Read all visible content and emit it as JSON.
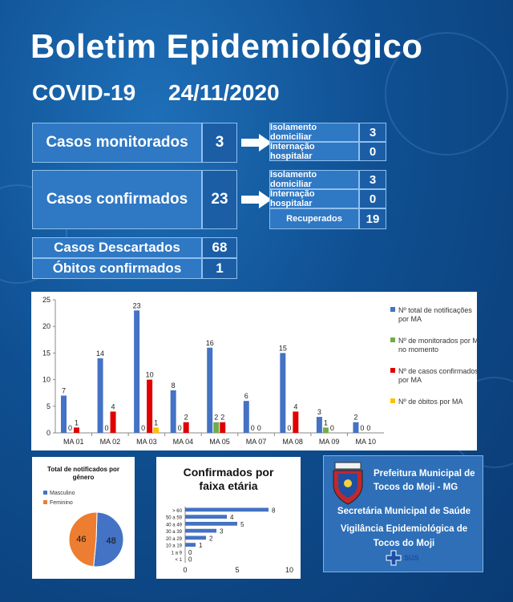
{
  "header": {
    "title": "Boletim Epidemiológico",
    "subtitle_left": "COVID-19",
    "date": "24/11/2020"
  },
  "monitorados": {
    "label": "Casos monitorados",
    "value": "3",
    "breakdown": [
      {
        "label": "Isolamento domiciliar",
        "value": "3"
      },
      {
        "label": "Internação hospitalar",
        "value": "0"
      }
    ]
  },
  "confirmados": {
    "label": "Casos confirmados",
    "value": "23",
    "breakdown": [
      {
        "label": "Isolamento domiciliar",
        "value": "3"
      },
      {
        "label": "Internação hospitalar",
        "value": "0"
      },
      {
        "label": "Recuperados",
        "value": "19"
      }
    ]
  },
  "descartados": {
    "label": "Casos Descartados",
    "value": "68"
  },
  "obitos": {
    "label": "Óbitos confirmados",
    "value": "1"
  },
  "colors": {
    "total": "#4472c4",
    "monitor": "#70ad47",
    "confirm": "#e00000",
    "obito": "#ffc000",
    "fem": "#ed7d31"
  },
  "chart_data": [
    {
      "type": "bar",
      "categories": [
        "MA 01",
        "MA 02",
        "MA 03",
        "MA 04",
        "MA 05",
        "MA 07",
        "MA 08",
        "MA 09",
        "MA 10"
      ],
      "ylim": [
        0,
        25
      ],
      "yticks": [
        0,
        5,
        10,
        15,
        20,
        25
      ],
      "series": [
        {
          "name": "Nº total de notificações por MA",
          "values": [
            7,
            14,
            23,
            8,
            16,
            6,
            15,
            3,
            2
          ]
        },
        {
          "name": "Nº de monitorados por MA no momento",
          "values": [
            0,
            0,
            0,
            0,
            2,
            0,
            0,
            1,
            0
          ]
        },
        {
          "name": "Nº de casos confirmados por MA",
          "values": [
            1,
            4,
            10,
            2,
            2,
            0,
            4,
            0,
            0
          ]
        },
        {
          "name": "Nº de óbitos por MA",
          "values": [
            0,
            0,
            1,
            0,
            0,
            0,
            0,
            0,
            0
          ]
        }
      ],
      "legend_position": "right"
    },
    {
      "type": "pie",
      "title": "Total de notificados por gênero",
      "labels": [
        "Masculino",
        "Feminino"
      ],
      "values": [
        48,
        46
      ],
      "legend_position": "top-left"
    },
    {
      "type": "bar",
      "orientation": "horizontal",
      "title": "Confirmados por faixa etária",
      "categories": [
        "> 60",
        "50 a 59",
        "40 a 49",
        "30 a 39",
        "20 a 29",
        "10 a 19",
        "1 a 9",
        "< 1"
      ],
      "values": [
        8,
        4,
        5,
        3,
        2,
        1,
        0,
        0
      ],
      "xlim": [
        0,
        10
      ],
      "xticks": [
        0,
        5,
        10
      ]
    }
  ],
  "footer": {
    "line1": "Prefeitura Municipal de",
    "line2": "Tocos do Moji - MG",
    "line3": "Secretária Municipal de Saúde",
    "line4": "Vigilância Epidemiológica de",
    "line5": "Tocos do Moji",
    "sus": "SUS"
  }
}
